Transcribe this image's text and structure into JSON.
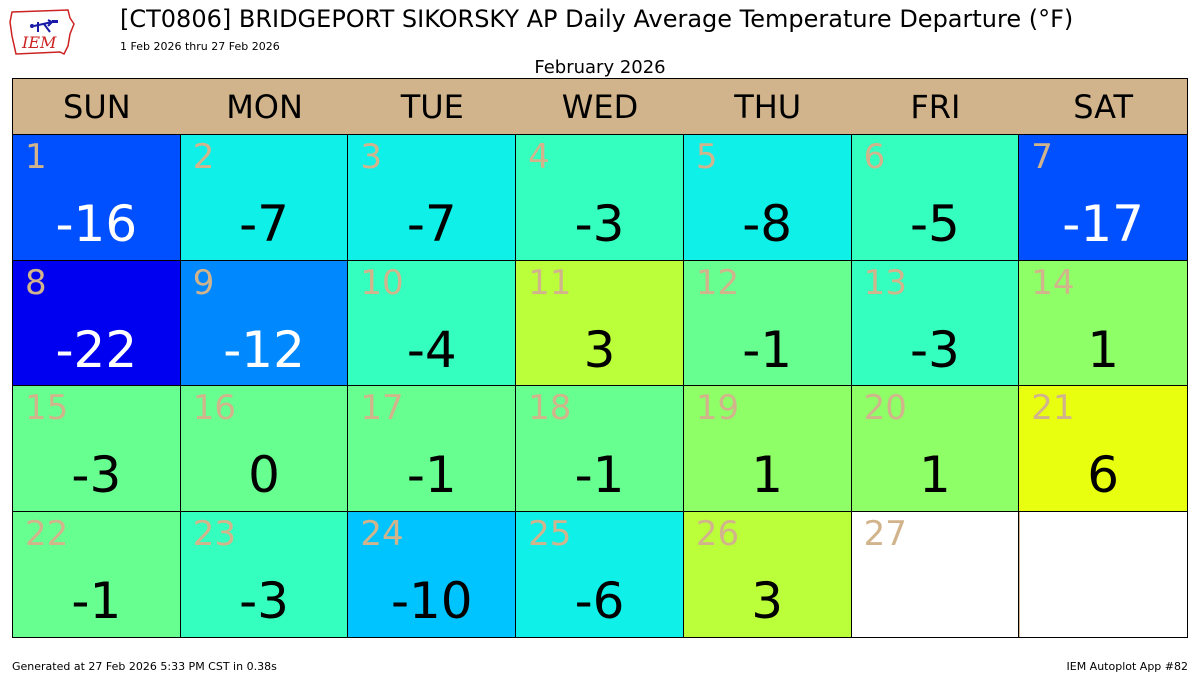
{
  "header": {
    "logo_text": "IEM",
    "title": "[CT0806] BRIDGEPORT SIKORSKY AP Daily Average Temperature Departure (°F)",
    "subtitle": "1 Feb 2026 thru 27 Feb 2026",
    "month_label": "February 2026"
  },
  "weekdays": [
    "SUN",
    "MON",
    "TUE",
    "WED",
    "THU",
    "FRI",
    "SAT"
  ],
  "chart_data": {
    "type": "heatmap",
    "title": "[CT0806] BRIDGEPORT SIKORSKY AP Daily Average Temperature Departure (°F)",
    "subtitle": "1 Feb 2026 thru 27 Feb 2026",
    "month": "February 2026",
    "units": "°F",
    "days": [
      {
        "day": "1",
        "value": "-16",
        "color": "#0050ff",
        "text_color": "#ffffff"
      },
      {
        "day": "2",
        "value": "-7",
        "color": "#0ff0e8",
        "text_color": "#000000"
      },
      {
        "day": "3",
        "value": "-7",
        "color": "#0ff0e8",
        "text_color": "#000000"
      },
      {
        "day": "4",
        "value": "-3",
        "color": "#35ffbe",
        "text_color": "#000000"
      },
      {
        "day": "5",
        "value": "-8",
        "color": "#0ff0e8",
        "text_color": "#000000"
      },
      {
        "day": "6",
        "value": "-5",
        "color": "#35ffbe",
        "text_color": "#000000"
      },
      {
        "day": "7",
        "value": "-17",
        "color": "#0050ff",
        "text_color": "#ffffff"
      },
      {
        "day": "8",
        "value": "-22",
        "color": "#0000f0",
        "text_color": "#ffffff"
      },
      {
        "day": "9",
        "value": "-12",
        "color": "#0088ff",
        "text_color": "#ffffff"
      },
      {
        "day": "10",
        "value": "-4",
        "color": "#35ffbe",
        "text_color": "#000000"
      },
      {
        "day": "11",
        "value": "3",
        "color": "#bbff3a",
        "text_color": "#000000"
      },
      {
        "day": "12",
        "value": "-1",
        "color": "#66ff90",
        "text_color": "#000000"
      },
      {
        "day": "13",
        "value": "-3",
        "color": "#35ffbe",
        "text_color": "#000000"
      },
      {
        "day": "14",
        "value": "1",
        "color": "#8eff66",
        "text_color": "#000000"
      },
      {
        "day": "15",
        "value": "-3",
        "color": "#66ff90",
        "text_color": "#000000"
      },
      {
        "day": "16",
        "value": "0",
        "color": "#66ff90",
        "text_color": "#000000"
      },
      {
        "day": "17",
        "value": "-1",
        "color": "#66ff90",
        "text_color": "#000000"
      },
      {
        "day": "18",
        "value": "-1",
        "color": "#66ff90",
        "text_color": "#000000"
      },
      {
        "day": "19",
        "value": "1",
        "color": "#8eff66",
        "text_color": "#000000"
      },
      {
        "day": "20",
        "value": "1",
        "color": "#8eff66",
        "text_color": "#000000"
      },
      {
        "day": "21",
        "value": "6",
        "color": "#e8ff10",
        "text_color": "#000000"
      },
      {
        "day": "22",
        "value": "-1",
        "color": "#66ff90",
        "text_color": "#000000"
      },
      {
        "day": "23",
        "value": "-3",
        "color": "#35ffbe",
        "text_color": "#000000"
      },
      {
        "day": "24",
        "value": "-10",
        "color": "#00c4ff",
        "text_color": "#000000"
      },
      {
        "day": "25",
        "value": "-6",
        "color": "#0ff0e8",
        "text_color": "#000000"
      },
      {
        "day": "26",
        "value": "3",
        "color": "#bbff3a",
        "text_color": "#000000"
      },
      {
        "day": "27",
        "value": "",
        "color": "#ffffff",
        "text_color": "#000000"
      },
      {
        "day": "",
        "value": "",
        "color": "#ffffff",
        "text_color": "#000000"
      }
    ]
  },
  "footer": {
    "generated": "Generated at 27 Feb 2026 5:33 PM CST in 0.38s",
    "app": "IEM Autoplot App #82"
  },
  "colors": {
    "header_bg": "#d2b48c",
    "day_number": "#d2b48c",
    "logo_red": "#cc2222",
    "logo_blue": "#1a1aa8"
  }
}
